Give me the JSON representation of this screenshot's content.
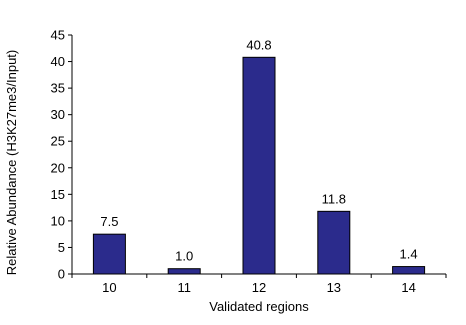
{
  "chart_data": {
    "type": "bar",
    "categories": [
      "10",
      "11",
      "12",
      "13",
      "14"
    ],
    "values": [
      7.5,
      1.0,
      40.8,
      11.8,
      1.4
    ],
    "value_labels": [
      "7.5",
      "1.0",
      "40.8",
      "11.8",
      "1.4"
    ],
    "title": "",
    "xlabel": "Validated regions",
    "ylabel": "Relative Abundance (H3K27me3/Input)",
    "ylim": [
      0,
      45
    ],
    "yticks": [
      0,
      5,
      10,
      15,
      20,
      25,
      30,
      35,
      40,
      45
    ],
    "grid": false,
    "legend": "none",
    "colors": {
      "bar_fill": "#2B2B8C",
      "bar_stroke": "#000000",
      "axis": "#000000"
    }
  }
}
